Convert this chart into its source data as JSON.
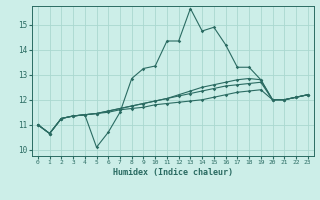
{
  "xlabel": "Humidex (Indice chaleur)",
  "background_color": "#cceee8",
  "line_color": "#2a6b62",
  "grid_color": "#aad8d0",
  "xlim": [
    -0.5,
    23.5
  ],
  "ylim": [
    9.75,
    15.75
  ],
  "yticks": [
    10,
    11,
    12,
    13,
    14,
    15
  ],
  "xticks": [
    0,
    1,
    2,
    3,
    4,
    5,
    6,
    7,
    8,
    9,
    10,
    11,
    12,
    13,
    14,
    15,
    16,
    17,
    18,
    19,
    20,
    21,
    22,
    23
  ],
  "series": [
    [
      11.0,
      10.65,
      11.25,
      11.35,
      11.4,
      10.1,
      10.7,
      11.5,
      12.85,
      13.25,
      13.35,
      14.35,
      14.35,
      15.65,
      14.75,
      14.9,
      14.2,
      13.3,
      13.3,
      12.8,
      12.0,
      12.0,
      12.1,
      12.2
    ],
    [
      11.0,
      10.65,
      11.25,
      11.35,
      11.4,
      11.45,
      11.55,
      11.65,
      11.75,
      11.85,
      11.95,
      12.05,
      12.2,
      12.35,
      12.5,
      12.6,
      12.7,
      12.8,
      12.85,
      12.8,
      12.0,
      12.0,
      12.1,
      12.2
    ],
    [
      11.0,
      10.65,
      11.25,
      11.35,
      11.4,
      11.45,
      11.55,
      11.65,
      11.75,
      11.85,
      11.95,
      12.05,
      12.15,
      12.25,
      12.35,
      12.45,
      12.55,
      12.6,
      12.65,
      12.7,
      12.0,
      12.0,
      12.1,
      12.2
    ],
    [
      11.0,
      10.65,
      11.25,
      11.35,
      11.4,
      11.45,
      11.5,
      11.6,
      11.65,
      11.7,
      11.8,
      11.85,
      11.9,
      11.95,
      12.0,
      12.1,
      12.2,
      12.3,
      12.35,
      12.4,
      12.0,
      12.0,
      12.1,
      12.2
    ]
  ]
}
